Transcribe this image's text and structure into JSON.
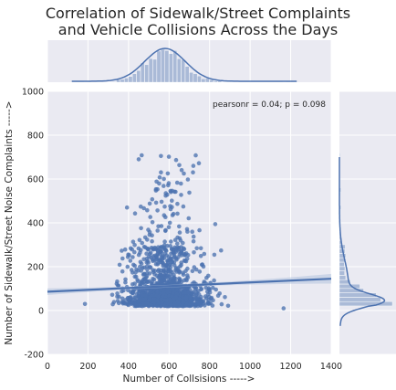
{
  "chart_data": {
    "type": "scatter",
    "title_lines": [
      "Correlation of Sidewalk/Street Complaints",
      "and Vehicle Collisions Across the Days"
    ],
    "xlabel": "Number of Collsisions ----->",
    "ylabel": "Number of Sidewalk/Street Noise Complaints ----->",
    "xlim": [
      0,
      1400
    ],
    "ylim": [
      -200,
      1000
    ],
    "x_ticks": [
      0,
      200,
      400,
      600,
      800,
      1000,
      1200,
      1400
    ],
    "y_ticks": [
      -200,
      0,
      200,
      400,
      600,
      800,
      1000
    ],
    "annotation": "pearsonr = 0.04; p = 0.098",
    "regression": {
      "x": [
        0,
        1400
      ],
      "y": [
        86,
        145
      ],
      "ci_halfwidth_edges": 22,
      "ci_halfwidth_center": 6
    },
    "grid": true,
    "marginals": {
      "top": "histogram + kde of collisions",
      "right": "histogram + kde of complaints"
    },
    "scatter_summary": {
      "n_points": 1450,
      "x_center": 580,
      "x_spread": 95,
      "y_core_center": 40,
      "y_tail_max": 710
    },
    "colors": {
      "background": "#EAEAF2",
      "grid": "#FFFFFF",
      "points": "#4C72B0",
      "line": "#4C72B0",
      "ci_band": "#B3C2DE"
    }
  }
}
